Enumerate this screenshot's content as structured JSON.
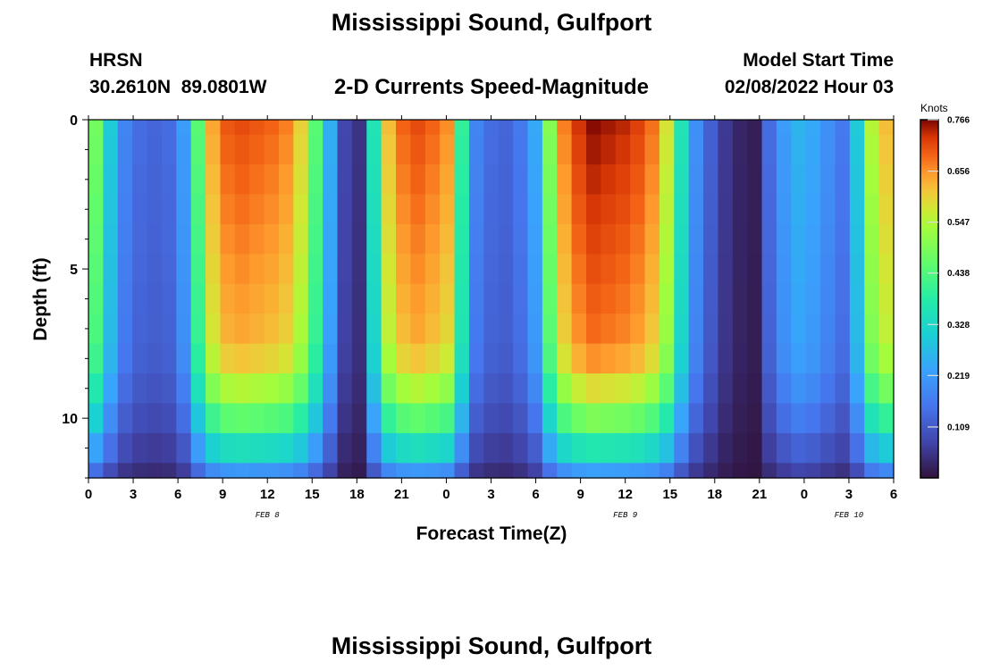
{
  "page": {
    "title": "Mississippi Sound, Gulfport",
    "footer_title": "Mississippi Sound, Gulfport",
    "station_id": "HRSN",
    "station_coords": "30.2610N  89.0801W",
    "subtitle": "2-D Currents Speed-Magnitude",
    "model_label": "Model Start Time",
    "model_start": "02/08/2022 Hour 03"
  },
  "chart_data": {
    "type": "heatmap",
    "title": "2-D Currents Speed-Magnitude",
    "xlabel": "Forecast Time(Z)",
    "ylabel": "Depth (ft)",
    "colorbar_label": "Knots",
    "x_range_hours": [
      0,
      54
    ],
    "x_ticks": [
      {
        "hour": 0,
        "label": "0"
      },
      {
        "hour": 3,
        "label": "3"
      },
      {
        "hour": 6,
        "label": "6"
      },
      {
        "hour": 9,
        "label": "9"
      },
      {
        "hour": 12,
        "label": "12"
      },
      {
        "hour": 15,
        "label": "15"
      },
      {
        "hour": 18,
        "label": "18"
      },
      {
        "hour": 21,
        "label": "21"
      },
      {
        "hour": 24,
        "label": "0"
      },
      {
        "hour": 27,
        "label": "3"
      },
      {
        "hour": 30,
        "label": "6"
      },
      {
        "hour": 33,
        "label": "9"
      },
      {
        "hour": 36,
        "label": "12"
      },
      {
        "hour": 39,
        "label": "15"
      },
      {
        "hour": 42,
        "label": "18"
      },
      {
        "hour": 45,
        "label": "21"
      },
      {
        "hour": 48,
        "label": "0"
      },
      {
        "hour": 51,
        "label": "3"
      },
      {
        "hour": 54,
        "label": "6"
      }
    ],
    "date_labels": [
      {
        "hour": 12,
        "label": "FEB 8"
      },
      {
        "hour": 36,
        "label": "FEB 9"
      },
      {
        "hour": 51,
        "label": "FEB 10"
      }
    ],
    "y_range_ft": [
      0,
      12
    ],
    "y_ticks": [
      0,
      5,
      10
    ],
    "color_range": [
      0,
      0.766
    ],
    "colorbar_ticks": [
      "0.766",
      "0.656",
      "0.547",
      "0.438",
      "0.328",
      "0.219",
      "0.109"
    ],
    "depth_levels_ft": [
      0,
      1,
      2,
      3,
      4,
      5,
      6,
      7,
      8,
      9,
      10,
      11,
      12
    ],
    "surface_speed_series": {
      "hours": [
        0,
        1,
        2,
        3,
        4,
        5,
        6,
        7,
        8,
        9,
        10,
        11,
        12,
        13,
        14,
        15,
        16,
        17,
        18,
        19,
        20,
        21,
        22,
        23,
        24,
        25,
        26,
        27,
        28,
        29,
        30,
        31,
        32,
        33,
        34,
        35,
        36,
        37,
        38,
        39,
        40,
        41,
        42,
        43,
        44,
        45,
        46,
        47,
        48,
        49,
        50,
        51,
        52,
        53,
        54
      ],
      "speed_knots": [
        0.48,
        0.3,
        0.18,
        0.14,
        0.13,
        0.14,
        0.22,
        0.45,
        0.64,
        0.7,
        0.71,
        0.7,
        0.69,
        0.67,
        0.6,
        0.45,
        0.25,
        0.08,
        0.05,
        0.36,
        0.62,
        0.69,
        0.71,
        0.69,
        0.66,
        0.4,
        0.18,
        0.14,
        0.13,
        0.16,
        0.24,
        0.5,
        0.67,
        0.73,
        0.76,
        0.75,
        0.74,
        0.72,
        0.68,
        0.58,
        0.36,
        0.2,
        0.12,
        0.06,
        0.03,
        0.02,
        0.14,
        0.22,
        0.26,
        0.24,
        0.2,
        0.16,
        0.3,
        0.55,
        0.62
      ]
    }
  }
}
